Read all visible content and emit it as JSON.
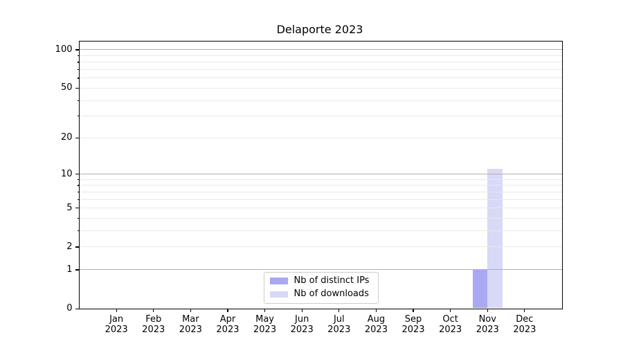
{
  "chart_data": {
    "type": "bar",
    "title": "Delaporte 2023",
    "categories": [
      "Jan",
      "Feb",
      "Mar",
      "Apr",
      "May",
      "Jun",
      "Jul",
      "Aug",
      "Sep",
      "Oct",
      "Nov",
      "Dec"
    ],
    "category_year": "2023",
    "series": [
      {
        "name": "Nb of distinct IPs",
        "color": "#a9a9f2",
        "values": [
          0,
          0,
          0,
          0,
          0,
          0,
          0,
          0,
          0,
          0,
          1,
          0
        ]
      },
      {
        "name": "Nb of downloads",
        "color": "#d8d8f7",
        "values": [
          0,
          0,
          0,
          0,
          0,
          0,
          0,
          0,
          0,
          0,
          11,
          0
        ]
      }
    ],
    "xlabel": "",
    "ylabel": "",
    "y_scale": "log10(1+v)",
    "y_ticks": [
      0,
      1,
      2,
      5,
      10,
      20,
      50,
      100
    ],
    "y_major_gridlines": [
      1,
      10,
      100
    ],
    "y_minor_gridlines": [
      2,
      3,
      4,
      5,
      6,
      7,
      8,
      9,
      20,
      30,
      40,
      50,
      60,
      70,
      80,
      90
    ],
    "ylim": [
      0,
      115
    ],
    "grid": true,
    "legend_position": "lower center",
    "colors": {
      "major_grid": "#b0b0b0",
      "minor_grid": "#e9e9e9",
      "spine": "#000000",
      "legend_border": "#cccccc"
    }
  }
}
